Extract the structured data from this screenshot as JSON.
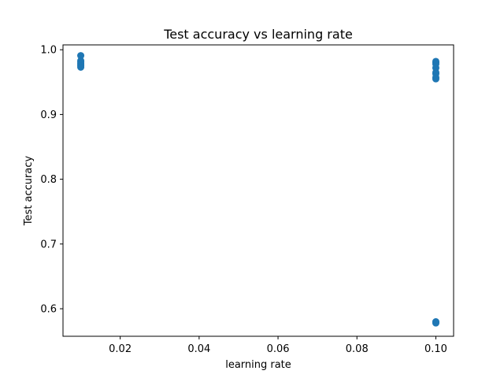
{
  "chart_data": {
    "type": "scatter",
    "title": "Test accuracy vs learning rate",
    "xlabel": "learning rate",
    "ylabel": "Test accuracy",
    "xlim": [
      0.0055,
      0.1045
    ],
    "ylim": [
      0.5575,
      1.0075
    ],
    "xticks": [
      0.02,
      0.04,
      0.06,
      0.08,
      0.1
    ],
    "xtick_labels": [
      "0.02",
      "0.04",
      "0.06",
      "0.08",
      "0.10"
    ],
    "yticks": [
      0.6,
      0.7,
      0.8,
      0.9,
      1.0
    ],
    "ytick_labels": [
      "0.6",
      "0.7",
      "0.8",
      "0.9",
      "1.0"
    ],
    "grid": false,
    "marker_color": "#1f77b4",
    "series": [
      {
        "x": [
          0.01,
          0.01,
          0.01,
          0.01,
          0.01,
          0.01,
          0.01,
          0.1,
          0.1,
          0.1,
          0.1,
          0.1,
          0.1,
          0.1,
          0.1,
          0.1,
          0.1,
          0.1
        ],
        "y": [
          0.991,
          0.983,
          0.981,
          0.979,
          0.977,
          0.975,
          0.973,
          0.982,
          0.98,
          0.978,
          0.972,
          0.965,
          0.963,
          0.957,
          0.955,
          0.58,
          0.579,
          0.578
        ]
      }
    ]
  }
}
